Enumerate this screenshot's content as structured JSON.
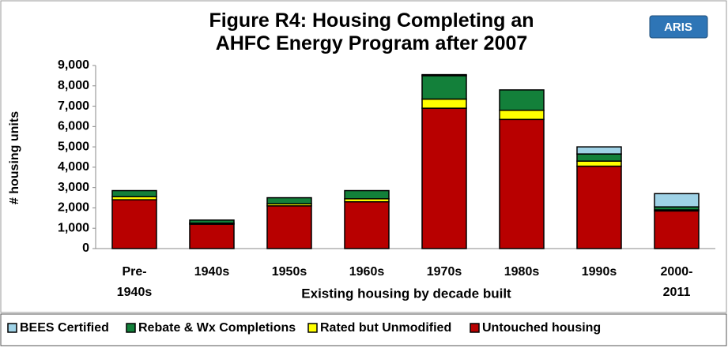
{
  "chart_data": {
    "type": "stacked-bar",
    "title": "Figure R4: Housing Completing an\nAHFC Energy Program after 2007",
    "badge": "ARIS",
    "x_label": "Existing housing by decade built",
    "y_label": "# housing units",
    "categories": [
      "Pre-\n1940s",
      "1940s",
      "1950s",
      "1960s",
      "1970s",
      "1980s",
      "1990s",
      "2000-\n2011"
    ],
    "series": [
      {
        "name": "Untouched housing",
        "color": "#b80000",
        "values": [
          2400,
          1200,
          2100,
          2300,
          6900,
          6350,
          4050,
          1850
        ]
      },
      {
        "name": "Rated but Unmodified",
        "color": "#ffff00",
        "values": [
          150,
          50,
          100,
          150,
          450,
          450,
          250,
          50
        ]
      },
      {
        "name": "Rebate & Wx Completions",
        "color": "#13803a",
        "values": [
          300,
          150,
          300,
          400,
          1150,
          1000,
          350,
          150
        ]
      },
      {
        "name": "BEES Certified",
        "color": "#9fd2e6",
        "values": [
          0,
          0,
          0,
          0,
          50,
          0,
          350,
          650
        ]
      }
    ],
    "ylim": [
      0,
      9000
    ],
    "yticks": [
      0,
      {
        "value": 1000,
        "label": "1,000"
      },
      {
        "value": 2000,
        "label": "2,000"
      },
      {
        "value": 3000,
        "label": "3,000"
      },
      {
        "value": 4000,
        "label": "4,000"
      },
      {
        "value": 5000,
        "label": "5,000"
      },
      {
        "value": 6000,
        "label": "6,000"
      },
      {
        "value": 7000,
        "label": "7,000"
      },
      {
        "value": 8000,
        "label": "8,000"
      },
      {
        "value": 9000,
        "label": "9,000"
      }
    ],
    "grid": false
  }
}
